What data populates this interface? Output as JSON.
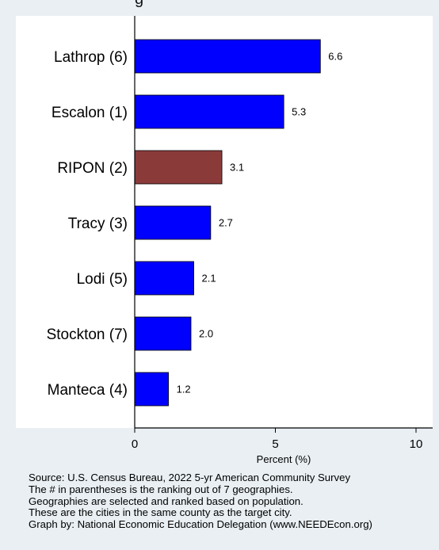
{
  "title_fragment": "g",
  "chart_data": {
    "type": "bar",
    "orientation": "horizontal",
    "categories": [
      "Lathrop (6)",
      "Escalon (1)",
      "RIPON (2)",
      "Tracy (3)",
      "Lodi (5)",
      "Stockton (7)",
      "Manteca (4)"
    ],
    "values": [
      6.6,
      5.3,
      3.1,
      2.7,
      2.1,
      2.0,
      1.2
    ],
    "value_labels": [
      "6.6",
      "5.3",
      "3.1",
      "2.7",
      "2.1",
      "2.0",
      "1.2"
    ],
    "highlight_category": "RIPON (2)",
    "xlabel": "Percent (%)",
    "xlim": [
      0,
      10
    ],
    "xticks": [
      0,
      5,
      10
    ],
    "xtick_labels": [
      "0",
      "5",
      "10"
    ],
    "grid": false,
    "colors": {
      "bar": "#0000ff",
      "highlight": "#8b3a3a",
      "background": "#e9eff3",
      "plot_background": "#ffffff"
    }
  },
  "notes": [
    "Source: U.S. Census Bureau, 2022 5-yr American Community Survey",
    "The # in parentheses is the ranking out of 7 geographies.",
    "Geographies are selected and ranked based on population.",
    "These are the cities in the same county as the target city.",
    "Graph by: National Economic Education Delegation (www.NEEDEcon.org)"
  ]
}
